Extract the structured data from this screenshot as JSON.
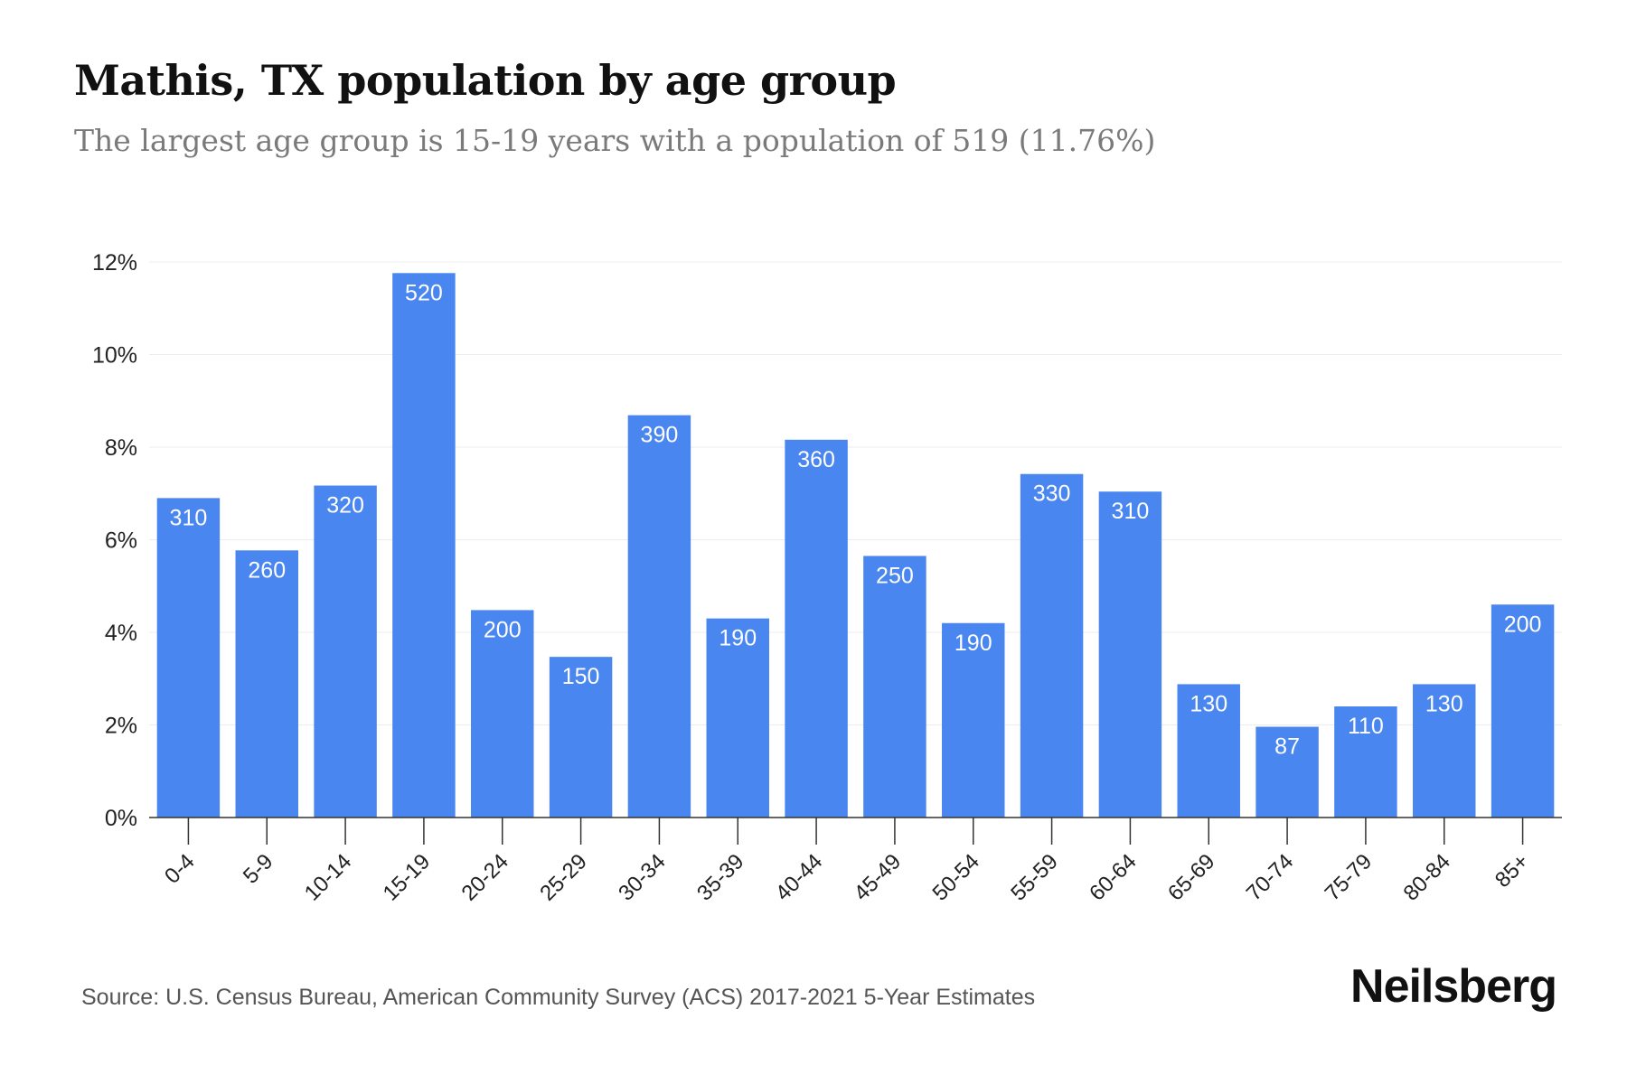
{
  "title": "Mathis, TX population by age group",
  "subtitle": "The largest age group is 15-19 years with a population of 519 (11.76%)",
  "source": "Source: U.S. Census Bureau, American Community Survey (ACS) 2017-2021 5-Year Estimates",
  "brand": "Neilsberg",
  "colors": {
    "bar": "#4a86f0",
    "label": "#ffffff",
    "grid": "#ececec",
    "axis": "#333333"
  },
  "chart_data": {
    "type": "bar",
    "title": "Mathis, TX population by age group",
    "xlabel": "",
    "ylabel": "",
    "ylim": [
      0,
      12
    ],
    "yticks": [
      0,
      2,
      4,
      6,
      8,
      10,
      12
    ],
    "ytick_labels": [
      "0%",
      "2%",
      "4%",
      "6%",
      "8%",
      "10%",
      "12%"
    ],
    "grid": true,
    "categories": [
      "0-4",
      "5-9",
      "10-14",
      "15-19",
      "20-24",
      "25-29",
      "30-34",
      "35-39",
      "40-44",
      "45-49",
      "50-54",
      "55-59",
      "60-64",
      "65-69",
      "70-74",
      "75-79",
      "80-84",
      "85+"
    ],
    "values_percent": [
      6.9,
      5.77,
      7.17,
      11.76,
      4.48,
      3.47,
      8.69,
      4.3,
      8.16,
      5.65,
      4.2,
      7.42,
      7.04,
      2.88,
      1.96,
      2.4,
      2.88,
      4.6
    ],
    "data_labels": [
      "310",
      "260",
      "320",
      "520",
      "200",
      "150",
      "390",
      "190",
      "360",
      "250",
      "190",
      "330",
      "310",
      "130",
      "87",
      "110",
      "130",
      "200"
    ]
  }
}
